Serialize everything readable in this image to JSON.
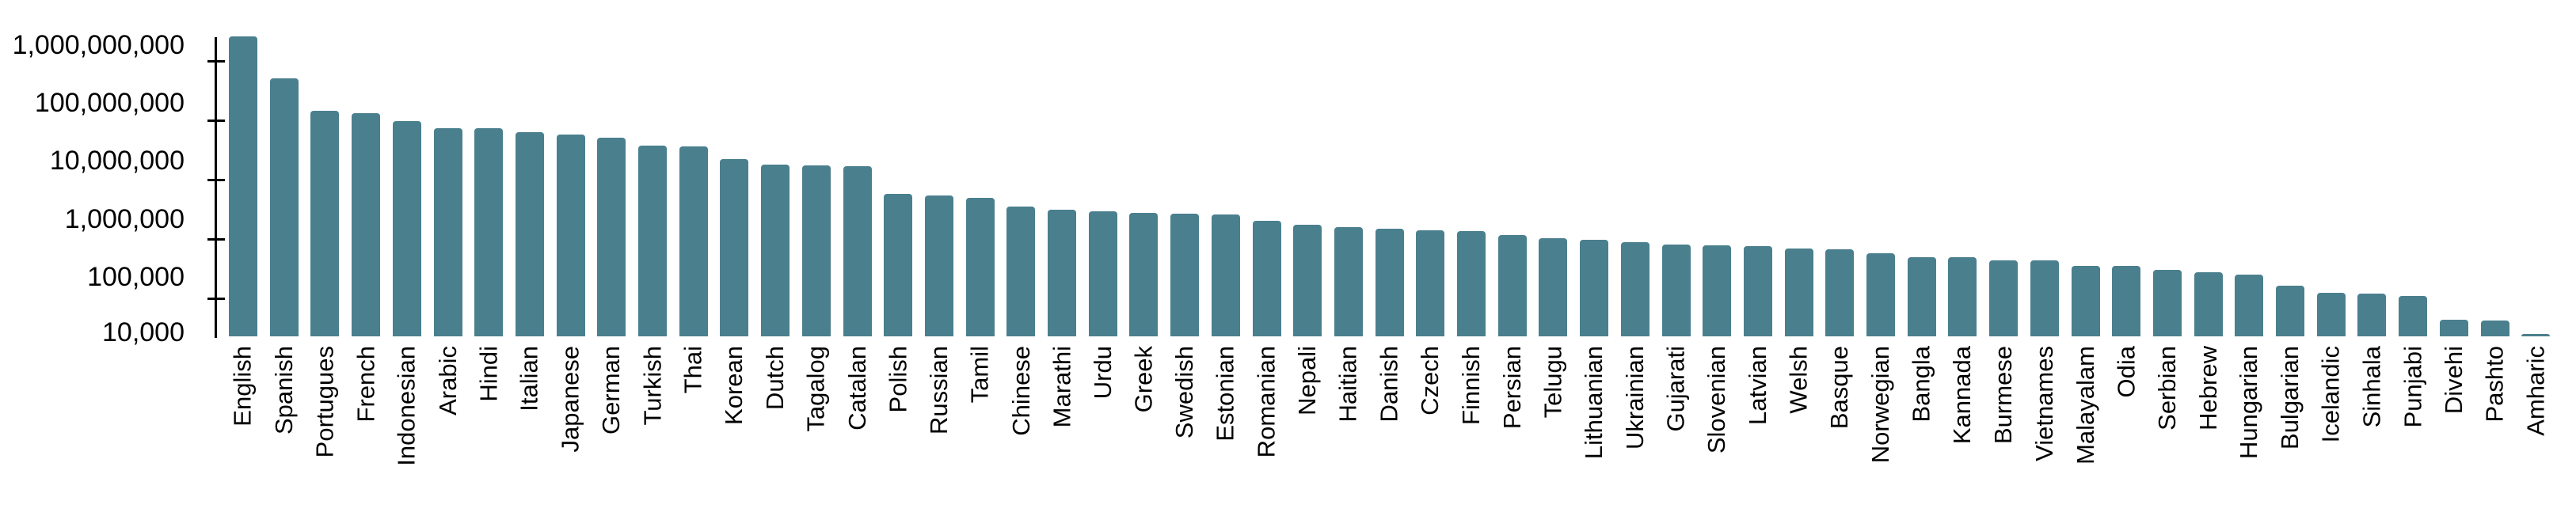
{
  "chart_data": {
    "type": "bar",
    "title": "",
    "xlabel": "",
    "ylabel": "",
    "y_axis": {
      "scale": "log",
      "ylim": [
        10000,
        2000000000
      ],
      "tick_labels": [
        "1,000,000,000",
        "100,000,000",
        "10,000,000",
        "1,000,000",
        "100,000",
        "10,000"
      ]
    },
    "grid": false,
    "legend": null,
    "bar_color": "#4a7f8e",
    "axis_color": "#000000",
    "background_color": "#ffffff",
    "categories": [
      "English",
      "Spanish",
      "Portugues",
      "French",
      "Indonesian",
      "Arabic",
      "Hindi",
      "Italian",
      "Japanese",
      "German",
      "Turkish",
      "Thai",
      "Korean",
      "Dutch",
      "Tagalog",
      "Catalan",
      "Polish",
      "Russian",
      "Tamil",
      "Chinese",
      "Marathi",
      "Urdu",
      "Greek",
      "Swedish",
      "Estonian",
      "Romanian",
      "Nepali",
      "Haitian",
      "Danish",
      "Czech",
      "Finnish",
      "Persian",
      "Telugu",
      "Lithuanian",
      "Ukrainian",
      "Gujarati",
      "Slovenian",
      "Latvian",
      "Welsh",
      "Basque",
      "Norwegian",
      "Bangla",
      "Kannada",
      "Burmese",
      "Vietnames",
      "Malayalam",
      "Odia",
      "Serbian",
      "Hebrew",
      "Hungarian",
      "Bulgarian",
      "Icelandic",
      "Sinhala",
      "Punjabi",
      "Divehi",
      "Pashto",
      "Amharic"
    ],
    "values": [
      1400000000,
      270000000,
      74000000,
      68000000,
      49000000,
      38000000,
      38000000,
      32000000,
      29000000,
      26000000,
      19000000,
      18000000,
      11000000,
      9000000,
      8700000,
      8300000,
      2800000,
      2600000,
      2400000,
      1700000,
      1500000,
      1400000,
      1300000,
      1260000,
      1250000,
      950000,
      830000,
      740000,
      710000,
      670000,
      640000,
      540000,
      480000,
      450000,
      420000,
      380000,
      370000,
      350000,
      320000,
      310000,
      270000,
      230000,
      230000,
      200000,
      200000,
      160000,
      160000,
      140000,
      125000,
      115000,
      73000,
      56000,
      55000,
      50000,
      19000,
      18500,
      11000
    ]
  }
}
